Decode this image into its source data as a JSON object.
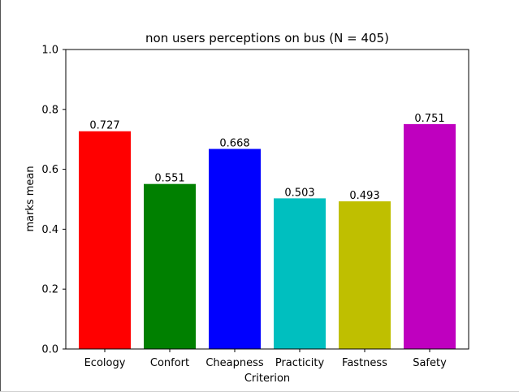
{
  "chart_data": {
    "type": "bar",
    "title": "non users perceptions on bus (N = 405)",
    "xlabel": "Criterion",
    "ylabel": "marks mean",
    "categories": [
      "Ecology",
      "Confort",
      "Cheapness",
      "Practicity",
      "Fastness",
      "Safety"
    ],
    "values": [
      0.727,
      0.551,
      0.668,
      0.503,
      0.493,
      0.751
    ],
    "value_labels": [
      "0.727",
      "0.551",
      "0.668",
      "0.503",
      "0.493",
      "0.751"
    ],
    "colors": [
      "#ff0000",
      "#008000",
      "#0000ff",
      "#00bfbf",
      "#bfbf00",
      "#bf00bf"
    ],
    "ylim": [
      0,
      1.0
    ],
    "yticks": [
      "0.0",
      "0.2",
      "0.4",
      "0.6",
      "0.8",
      "1.0"
    ],
    "grid": false,
    "legend": "none"
  }
}
